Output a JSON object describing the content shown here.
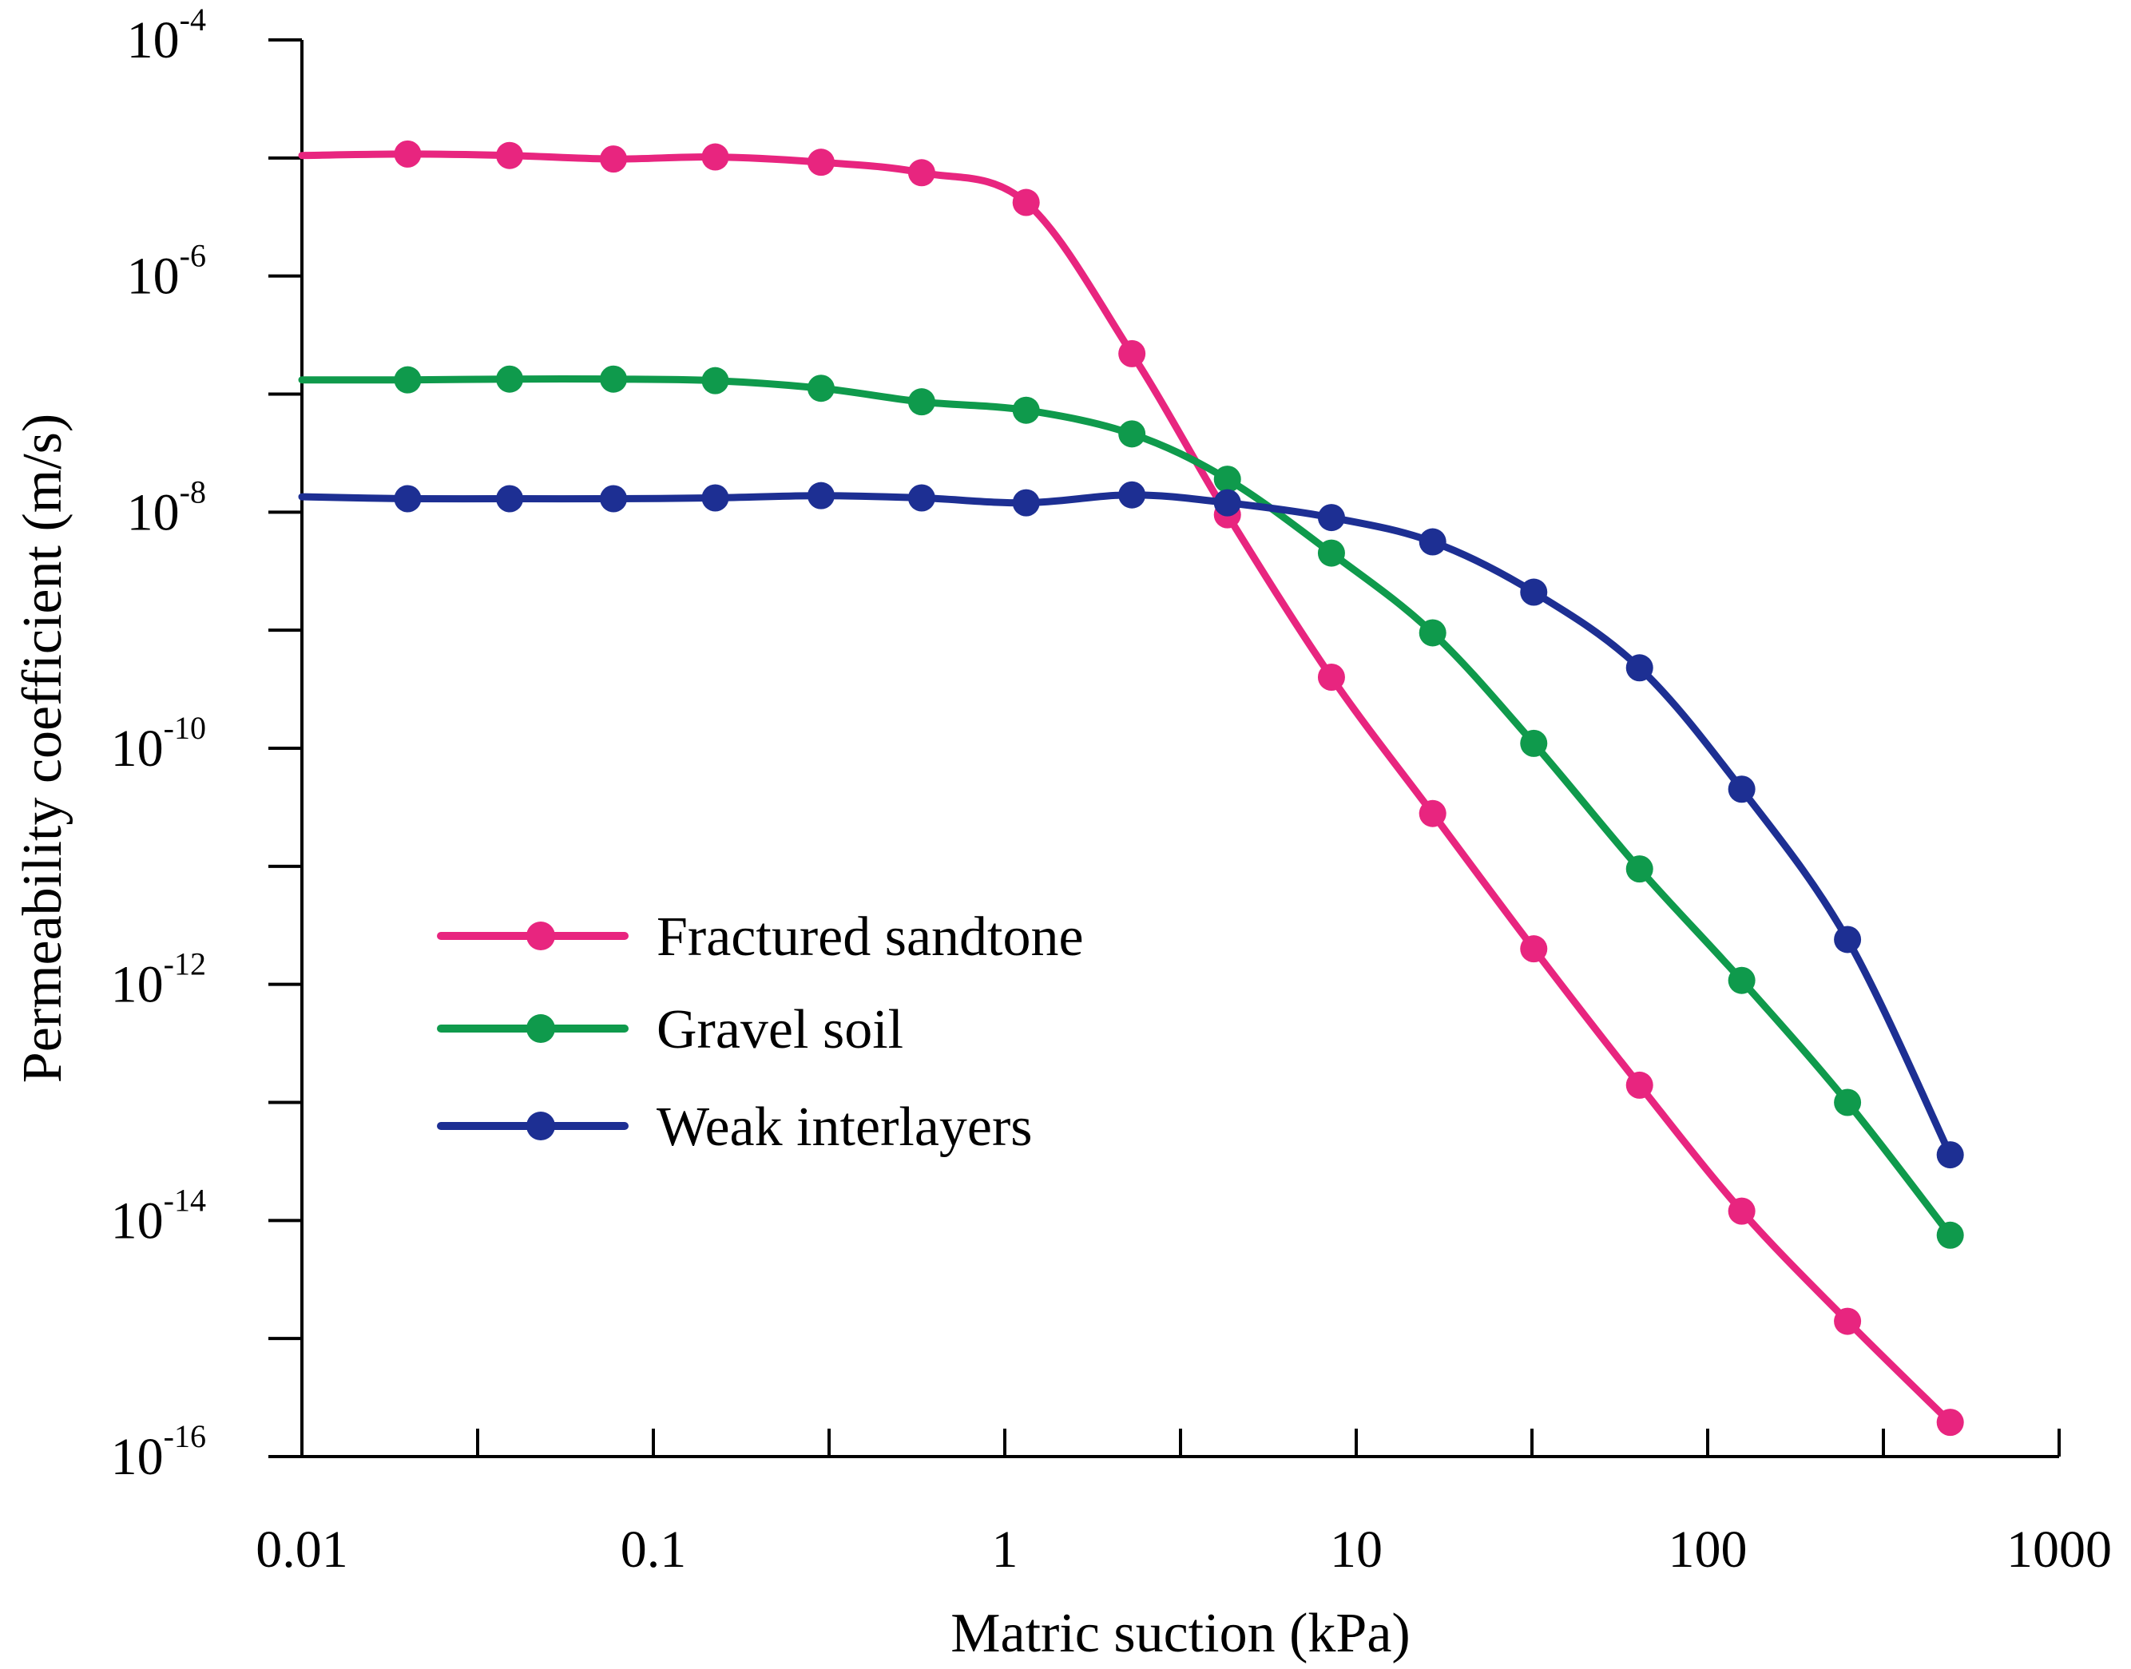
{
  "chart_data": {
    "type": "line",
    "xscale": "log",
    "yscale": "log",
    "xlim": [
      0.01,
      1000
    ],
    "ylim": [
      1e-16,
      0.0001
    ],
    "xlabel": "Matric suction (kPa)",
    "ylabel": "Permeability coefficient (m/s)",
    "x_ticks": [
      {
        "value": 0.01,
        "label": "0.01"
      },
      {
        "value": 0.1,
        "label": "0.1"
      },
      {
        "value": 1,
        "label": "1"
      },
      {
        "value": 10,
        "label": "10"
      },
      {
        "value": 100,
        "label": "100"
      },
      {
        "value": 1000,
        "label": "1000"
      }
    ],
    "y_ticks": [
      {
        "value": 0.0001,
        "base": "10",
        "exp": "-4"
      },
      {
        "value": 1e-06,
        "base": "10",
        "exp": "-6"
      },
      {
        "value": 1e-08,
        "base": "10",
        "exp": "-8"
      },
      {
        "value": 1e-10,
        "base": "10",
        "exp": "-10"
      },
      {
        "value": 1e-12,
        "base": "10",
        "exp": "-12"
      },
      {
        "value": 1e-14,
        "base": "10",
        "exp": "-14"
      },
      {
        "value": 1e-16,
        "base": "10",
        "exp": "-16"
      }
    ],
    "legend_position": "left-middle",
    "series": [
      {
        "name": "Fractured sandtone",
        "color": "#e8257f",
        "x": [
          0.01,
          0.02,
          0.039,
          0.077,
          0.15,
          0.3,
          0.58,
          1.15,
          2.3,
          4.3,
          8.5,
          16.5,
          32,
          64,
          125,
          250,
          490
        ],
        "y": [
          1.05e-05,
          1.08e-05,
          1.05e-05,
          9.8e-06,
          1.02e-05,
          9.2e-06,
          7.5e-06,
          4.2e-06,
          2.2e-07,
          9.5e-09,
          4e-10,
          2.8e-11,
          2e-12,
          1.4e-13,
          1.2e-14,
          1.4e-15,
          1.95e-16
        ]
      },
      {
        "name": "Gravel soil",
        "color": "#0f9a4c",
        "x": [
          0.01,
          0.02,
          0.039,
          0.077,
          0.15,
          0.3,
          0.58,
          1.15,
          2.3,
          4.3,
          8.5,
          16.5,
          32,
          64,
          125,
          250,
          490
        ],
        "y": [
          1.32e-07,
          1.32e-07,
          1.34e-07,
          1.34e-07,
          1.3e-07,
          1.12e-07,
          8.6e-08,
          7.3e-08,
          4.6e-08,
          1.9e-08,
          4.5e-09,
          9.5e-10,
          1.1e-10,
          9.5e-12,
          1.08e-12,
          1e-13,
          7.5e-15
        ]
      },
      {
        "name": "Weak interlayers",
        "color": "#1d2f93",
        "x": [
          0.01,
          0.02,
          0.039,
          0.077,
          0.15,
          0.3,
          0.58,
          1.15,
          2.3,
          4.3,
          8.5,
          16.5,
          32,
          64,
          125,
          250,
          490
        ],
        "y": [
          1.35e-08,
          1.3e-08,
          1.3e-08,
          1.3e-08,
          1.32e-08,
          1.38e-08,
          1.32e-08,
          1.2e-08,
          1.4e-08,
          1.2e-08,
          9e-09,
          5.6e-09,
          2.1e-09,
          4.8e-10,
          4.5e-11,
          2.4e-12,
          3.6e-14
        ]
      }
    ]
  }
}
